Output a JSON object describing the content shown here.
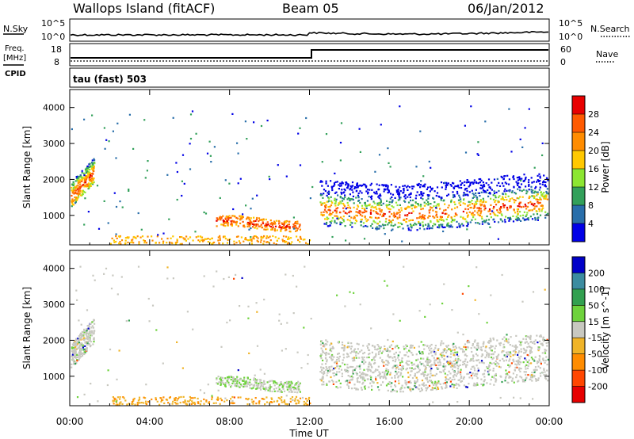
{
  "header": {
    "station": "Wallops Island (fitACF)",
    "beam": "Beam 05",
    "date": "06/Jan/2012"
  },
  "aux_panels": {
    "nsky": {
      "label": "N.Sky",
      "tick_top": "10^5",
      "tick_bottom": "10^0",
      "right_label": "N.Search",
      "right_tick_top": "10^5",
      "right_tick_bottom": "10^0"
    },
    "freq": {
      "label_line1": "Freq.",
      "label_line2": "[MHz]",
      "tick_top": "18",
      "tick_bottom": "8",
      "right_label": "Nave",
      "right_tick_top": "60",
      "right_tick_bottom": "0"
    },
    "cpid": {
      "label": "CPID",
      "text": "tau (fast) 503"
    }
  },
  "chart_data": [
    {
      "type": "heatmap",
      "title": "",
      "xlabel": "",
      "ylabel": "Slant Range [km]",
      "x_ticks": [
        "00:00",
        "04:00",
        "08:00",
        "12:00",
        "16:00",
        "20:00",
        "00:00"
      ],
      "y_ticks": [
        1000,
        2000,
        3000,
        4000
      ],
      "ylim": [
        180,
        4500
      ],
      "xlim_hours": [
        0,
        24
      ],
      "colorbar": {
        "label": "Power [dB]",
        "ticks": [
          "28",
          "24",
          "20",
          "16",
          "12",
          "8",
          "4"
        ],
        "colors": [
          "#e80000",
          "#ff5a00",
          "#ff8c00",
          "#ffc800",
          "#8ce632",
          "#32a05a",
          "#286eaa",
          "#0000e6"
        ]
      }
    },
    {
      "type": "heatmap",
      "title": "",
      "xlabel": "Time UT",
      "ylabel": "Slant Range [km]",
      "x_ticks": [
        "00:00",
        "04:00",
        "08:00",
        "12:00",
        "16:00",
        "20:00",
        "00:00"
      ],
      "y_ticks": [
        1000,
        2000,
        3000,
        4000
      ],
      "ylim": [
        180,
        4500
      ],
      "xlim_hours": [
        0,
        24
      ],
      "colorbar": {
        "label": "Velocity [m s^-1]",
        "ticks": [
          "200",
          "100",
          "50",
          "15",
          "-15",
          "-50",
          "-100",
          "-200"
        ],
        "colors": [
          "#0000c8",
          "#3c8ca0",
          "#32a050",
          "#6ed23c",
          "#c8c8c0",
          "#f0b428",
          "#ff8c00",
          "#ff4600",
          "#e60000"
        ]
      }
    }
  ]
}
